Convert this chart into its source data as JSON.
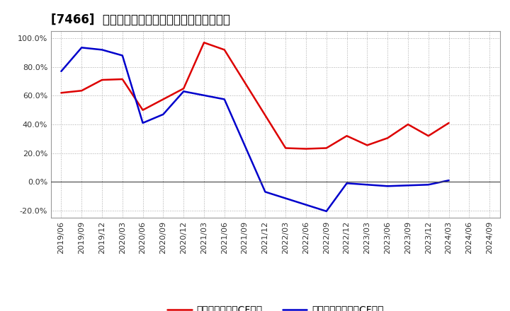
{
  "title": "[7466]  有利子負債キャッシュフロー比率の推移",
  "red_label": "有利子負債営業CF比率",
  "blue_label": "有利子負債フリーCF比率",
  "dates": [
    "2019/06",
    "2019/09",
    "2019/12",
    "2020/03",
    "2020/06",
    "2020/09",
    "2020/12",
    "2021/03",
    "2021/06",
    "2021/09",
    "2021/12",
    "2022/03",
    "2022/06",
    "2022/09",
    "2022/12",
    "2023/03",
    "2023/06",
    "2023/09",
    "2023/12",
    "2024/03",
    "2024/06",
    "2024/09"
  ],
  "red_x": [
    0,
    1,
    2,
    3,
    4,
    6,
    7,
    8,
    11,
    12,
    13,
    14,
    15,
    16,
    17,
    18,
    19
  ],
  "red_y": [
    0.62,
    0.635,
    0.71,
    0.715,
    0.5,
    0.65,
    0.97,
    0.92,
    0.235,
    0.23,
    0.235,
    0.32,
    0.255,
    0.305,
    0.4,
    0.32,
    0.41
  ],
  "blue_x": [
    0,
    1,
    2,
    3,
    4,
    5,
    6,
    8,
    10,
    13,
    14,
    15,
    16,
    17,
    18,
    19
  ],
  "blue_y": [
    0.77,
    0.935,
    0.92,
    0.88,
    0.41,
    0.47,
    0.63,
    0.575,
    -0.07,
    -0.205,
    -0.01,
    -0.02,
    -0.03,
    -0.025,
    -0.02,
    0.01
  ],
  "ylim": [
    -0.25,
    1.05
  ],
  "yticks": [
    -0.2,
    0.0,
    0.2,
    0.4,
    0.6,
    0.8,
    1.0
  ],
  "background_color": "#ffffff",
  "plot_bg_color": "#ffffff",
  "grid_color": "#aaaaaa",
  "red_color": "#dd0000",
  "blue_color": "#0000cc",
  "zero_line_color": "#555555",
  "title_fontsize": 12,
  "axis_fontsize": 8,
  "legend_fontsize": 10
}
